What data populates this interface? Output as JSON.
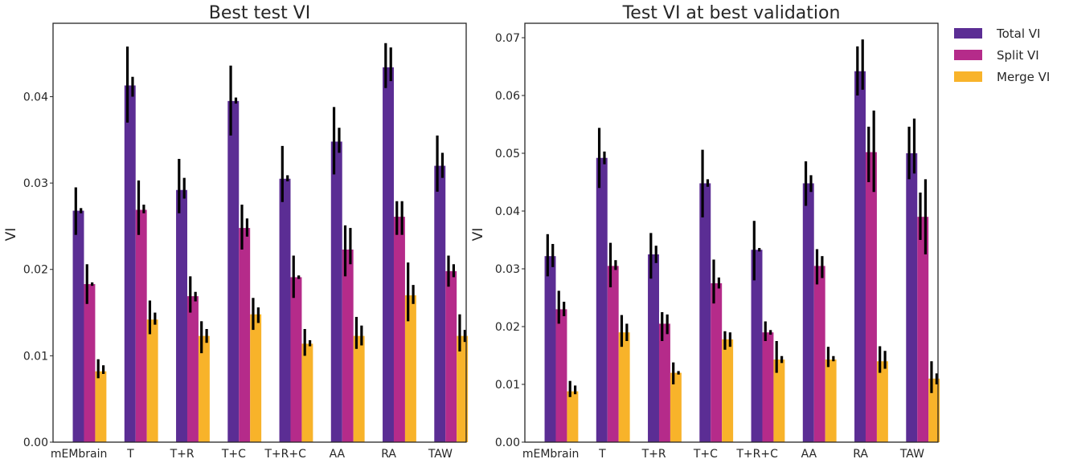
{
  "legend": {
    "position": "top-right-outside",
    "entries": [
      {
        "label": "Total VI",
        "color": "#5b2d94"
      },
      {
        "label": "Split VI",
        "color": "#b52b8a"
      },
      {
        "label": "Merge VI",
        "color": "#f8b32a"
      }
    ]
  },
  "chart_data": [
    {
      "type": "bar",
      "title": "Best test VI",
      "xlabel": "",
      "ylabel": "VI",
      "ylim": [
        0,
        0.0485
      ],
      "yticks": [
        "0.00",
        "0.01",
        "0.02",
        "0.03",
        "0.04"
      ],
      "ytick_values": [
        0,
        0.01,
        0.02,
        0.03,
        0.04
      ],
      "grid": false,
      "categories": [
        "mEMbrain",
        "T",
        "T+R",
        "T+C",
        "T+R+C",
        "AA",
        "RA",
        "TAW"
      ],
      "series": [
        {
          "name": "Total VI",
          "color": "#5b2d94",
          "values": [
            0.0268,
            0.0413,
            0.0292,
            0.0395,
            0.0305,
            0.0348,
            0.0434,
            0.032
          ],
          "err_a": [
            [
              0.024,
              0.0295
            ],
            [
              0.037,
              0.0458
            ],
            [
              0.0265,
              0.0328
            ],
            [
              0.0355,
              0.0436
            ],
            [
              0.0278,
              0.0343
            ],
            [
              0.031,
              0.0388
            ],
            [
              0.041,
              0.0462
            ],
            [
              0.029,
              0.0355
            ]
          ],
          "err_b": [
            [
              0.0265,
              0.0271
            ],
            [
              0.04,
              0.0423
            ],
            [
              0.0282,
              0.0306
            ],
            [
              0.0392,
              0.0399
            ],
            [
              0.0302,
              0.0309
            ],
            [
              0.0335,
              0.0364
            ],
            [
              0.0418,
              0.0457
            ],
            [
              0.0306,
              0.0335
            ]
          ]
        },
        {
          "name": "Split VI",
          "color": "#b52b8a",
          "values": [
            0.0183,
            0.0269,
            0.0169,
            0.0248,
            0.0191,
            0.0223,
            0.0261,
            0.0198
          ],
          "err_a": [
            [
              0.016,
              0.0206
            ],
            [
              0.024,
              0.0303
            ],
            [
              0.015,
              0.0192
            ],
            [
              0.0223,
              0.0275
            ],
            [
              0.0167,
              0.0216
            ],
            [
              0.0192,
              0.0251
            ],
            [
              0.024,
              0.0279
            ],
            [
              0.018,
              0.0216
            ]
          ],
          "err_b": [
            [
              0.0181,
              0.0185
            ],
            [
              0.0265,
              0.0275
            ],
            [
              0.0163,
              0.0174
            ],
            [
              0.0238,
              0.0259
            ],
            [
              0.0189,
              0.0193
            ],
            [
              0.0206,
              0.0248
            ],
            [
              0.024,
              0.0279
            ],
            [
              0.0191,
              0.0206
            ]
          ]
        },
        {
          "name": "Merge VI",
          "color": "#f8b32a",
          "values": [
            0.0082,
            0.0142,
            0.0123,
            0.0148,
            0.0114,
            0.0123,
            0.017,
            0.0123
          ],
          "err_a": [
            [
              0.0074,
              0.0096
            ],
            [
              0.0125,
              0.0164
            ],
            [
              0.0103,
              0.014
            ],
            [
              0.013,
              0.0167
            ],
            [
              0.01,
              0.0131
            ],
            [
              0.0108,
              0.0145
            ],
            [
              0.014,
              0.0208
            ],
            [
              0.0105,
              0.0148
            ]
          ],
          "err_b": [
            [
              0.0079,
              0.0089
            ],
            [
              0.0136,
              0.015
            ],
            [
              0.0115,
              0.0131
            ],
            [
              0.0138,
              0.0156
            ],
            [
              0.0111,
              0.0118
            ],
            [
              0.0112,
              0.0135
            ],
            [
              0.016,
              0.0182
            ],
            [
              0.0116,
              0.013
            ]
          ]
        }
      ]
    },
    {
      "type": "bar",
      "title": "Test VI at best validation",
      "xlabel": "",
      "ylabel": "VI",
      "ylim": [
        0,
        0.0725
      ],
      "yticks": [
        "0.00",
        "0.01",
        "0.02",
        "0.03",
        "0.04",
        "0.05",
        "0.06",
        "0.07"
      ],
      "ytick_values": [
        0,
        0.01,
        0.02,
        0.03,
        0.04,
        0.05,
        0.06,
        0.07
      ],
      "grid": false,
      "categories": [
        "mEMbrain",
        "T",
        "T+R",
        "T+C",
        "T+R+C",
        "AA",
        "RA",
        "TAW"
      ],
      "series": [
        {
          "name": "Total VI",
          "color": "#5b2d94",
          "values": [
            0.0322,
            0.0492,
            0.0325,
            0.0448,
            0.0333,
            0.0448,
            0.0642,
            0.05
          ],
          "err_a": [
            [
              0.0287,
              0.036
            ],
            [
              0.044,
              0.0544
            ],
            [
              0.0283,
              0.0362
            ],
            [
              0.0389,
              0.0506
            ],
            [
              0.028,
              0.0383
            ],
            [
              0.0409,
              0.0486
            ],
            [
              0.06,
              0.0685
            ],
            [
              0.0455,
              0.0546
            ]
          ],
          "err_b": [
            [
              0.0303,
              0.0343
            ],
            [
              0.0481,
              0.0503
            ],
            [
              0.031,
              0.034
            ],
            [
              0.0442,
              0.0455
            ],
            [
              0.033,
              0.0336
            ],
            [
              0.0433,
              0.0462
            ],
            [
              0.061,
              0.0697
            ],
            [
              0.0465,
              0.056
            ]
          ]
        },
        {
          "name": "Split VI",
          "color": "#b52b8a",
          "values": [
            0.023,
            0.0305,
            0.0205,
            0.0275,
            0.019,
            0.0305,
            0.0502,
            0.039
          ],
          "err_a": [
            [
              0.0205,
              0.0262
            ],
            [
              0.0268,
              0.0345
            ],
            [
              0.0175,
              0.0225
            ],
            [
              0.024,
              0.0316
            ],
            [
              0.0175,
              0.0209
            ],
            [
              0.0273,
              0.0334
            ],
            [
              0.045,
              0.0546
            ],
            [
              0.035,
              0.0432
            ]
          ],
          "err_b": [
            [
              0.0218,
              0.0243
            ],
            [
              0.0298,
              0.0315
            ],
            [
              0.0187,
              0.0221
            ],
            [
              0.0266,
              0.0285
            ],
            [
              0.0186,
              0.0194
            ],
            [
              0.0284,
              0.0322
            ],
            [
              0.0433,
              0.0574
            ],
            [
              0.0325,
              0.0455
            ]
          ]
        },
        {
          "name": "Merge VI",
          "color": "#f8b32a",
          "values": [
            0.0088,
            0.019,
            0.012,
            0.0178,
            0.0143,
            0.0143,
            0.014,
            0.011
          ],
          "err_a": [
            [
              0.0078,
              0.0106
            ],
            [
              0.0165,
              0.022
            ],
            [
              0.01,
              0.0138
            ],
            [
              0.016,
              0.0192
            ],
            [
              0.012,
              0.0175
            ],
            [
              0.013,
              0.0165
            ],
            [
              0.012,
              0.0166
            ],
            [
              0.0085,
              0.014
            ]
          ],
          "err_b": [
            [
              0.0083,
              0.0098
            ],
            [
              0.0175,
              0.0205
            ],
            [
              0.0117,
              0.0123
            ],
            [
              0.0165,
              0.019
            ],
            [
              0.0137,
              0.0149
            ],
            [
              0.014,
              0.0149
            ],
            [
              0.0127,
              0.0158
            ],
            [
              0.01,
              0.0119
            ]
          ]
        }
      ]
    }
  ]
}
